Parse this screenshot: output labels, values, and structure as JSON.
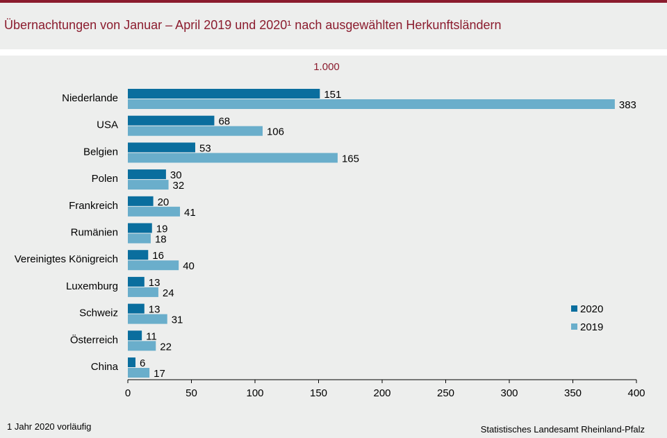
{
  "title": "Übernachtungen von Januar – April 2019 und 2020¹ nach ausgewählten Herkunftsländern",
  "unit_label": "1.000",
  "footnote": "1 Jahr 2020 vorläufig",
  "source": "Statistisches Landesamt Rheinland-Pfalz",
  "colors": {
    "accent": "#8b1c2e",
    "series_2020": "#0a6e9e",
    "series_2019": "#6aaecb"
  },
  "chart_data": {
    "type": "bar",
    "orientation": "horizontal",
    "categories": [
      "Niederlande",
      "USA",
      "Belgien",
      "Polen",
      "Frankreich",
      "Rumänien",
      "Vereinigtes Königreich",
      "Luxemburg",
      "Schweiz",
      "Österreich",
      "China"
    ],
    "series": [
      {
        "name": "2020",
        "color": "#0a6e9e",
        "values": [
          151,
          68,
          53,
          30,
          20,
          19,
          16,
          13,
          13,
          11,
          6
        ]
      },
      {
        "name": "2019",
        "color": "#6aaecb",
        "values": [
          383,
          106,
          165,
          32,
          41,
          18,
          40,
          24,
          31,
          22,
          17
        ]
      }
    ],
    "xlim": [
      0,
      400
    ],
    "xticks": [
      0,
      50,
      100,
      150,
      200,
      250,
      300,
      350,
      400
    ],
    "grid": false,
    "legend_position": "bottom-right"
  }
}
